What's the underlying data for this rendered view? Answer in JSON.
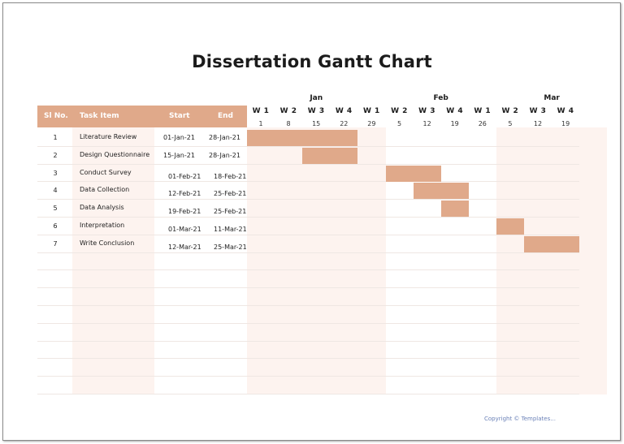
{
  "title": "Dissertation Gantt Chart",
  "colors": {
    "header": "#e0a98a",
    "bar": "#e0a98a",
    "stripe": "#fdf3ef"
  },
  "columns": {
    "sl": "Sl No.",
    "task": "Task Item",
    "start": "Start",
    "end": "End"
  },
  "timeline": {
    "months": [
      {
        "label": "Jan",
        "first_week": 0,
        "span": 5
      },
      {
        "label": "Feb",
        "first_week": 5,
        "span": 4
      },
      {
        "label": "Mar",
        "first_week": 9,
        "span": 4
      }
    ],
    "weeks": [
      {
        "label": "W 1",
        "day": "1"
      },
      {
        "label": "W 2",
        "day": "8"
      },
      {
        "label": "W 3",
        "day": "15"
      },
      {
        "label": "W 4",
        "day": "22"
      },
      {
        "label": "W 1",
        "day": "29"
      },
      {
        "label": "W 2",
        "day": "5"
      },
      {
        "label": "W 3",
        "day": "12"
      },
      {
        "label": "W 4",
        "day": "19"
      },
      {
        "label": "W 1",
        "day": "26"
      },
      {
        "label": "W 2",
        "day": "5"
      },
      {
        "label": "W 3",
        "day": "12"
      },
      {
        "label": "W 4",
        "day": "19"
      }
    ]
  },
  "tasks": [
    {
      "no": "1",
      "name": "Literature Review",
      "start": "01-Jan-21",
      "end": "28-Jan-21",
      "from_week": 0,
      "weeks": 4
    },
    {
      "no": "2",
      "name": "Design Questionnaire",
      "start": "15-Jan-21",
      "end": "28-Jan-21",
      "from_week": 2,
      "weeks": 2
    },
    {
      "no": "3",
      "name": "Conduct Survey",
      "start": "01-Feb-21",
      "end": "18-Feb-21",
      "from_week": 5,
      "weeks": 2
    },
    {
      "no": "4",
      "name": "Data Collection",
      "start": "12-Feb-21",
      "end": "25-Feb-21",
      "from_week": 6,
      "weeks": 2
    },
    {
      "no": "5",
      "name": "Data Analysis",
      "start": "19-Feb-21",
      "end": "25-Feb-21",
      "from_week": 7,
      "weeks": 1
    },
    {
      "no": "6",
      "name": "Interpretation",
      "start": "01-Mar-21",
      "end": "11-Mar-21",
      "from_week": 9,
      "weeks": 1
    },
    {
      "no": "7",
      "name": "Write Conclusion",
      "start": "12-Mar-21",
      "end": "25-Mar-21",
      "from_week": 10,
      "weeks": 2
    }
  ],
  "footer": "Copyright © Templates..."
}
